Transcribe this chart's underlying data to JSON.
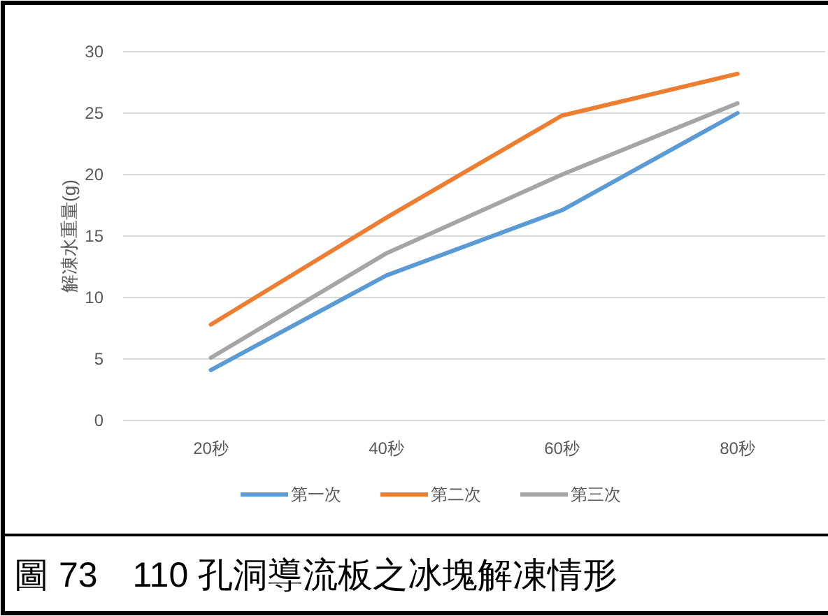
{
  "chart_data": {
    "type": "line",
    "ylabel": "解凍水重量(g)",
    "categories": [
      "20秒",
      "40秒",
      "60秒",
      "80秒"
    ],
    "series": [
      {
        "name": "第一次",
        "color": "#5b9bd5",
        "values": [
          4.1,
          11.8,
          17.1,
          25.0
        ]
      },
      {
        "name": "第二次",
        "color": "#ed7d31",
        "values": [
          7.8,
          16.5,
          24.8,
          28.2
        ]
      },
      {
        "name": "第三次",
        "color": "#a5a5a5",
        "values": [
          5.1,
          13.6,
          20.0,
          25.8
        ]
      }
    ],
    "ylim": [
      0,
      30
    ],
    "yticks": [
      0,
      5,
      10,
      15,
      20,
      25,
      30
    ],
    "grid": "y",
    "legend": "bottom",
    "marker": "none",
    "line_style": "solid",
    "annotations": [
      "圖 73　110 孔洞導流板之冰塊解凍情形"
    ]
  }
}
